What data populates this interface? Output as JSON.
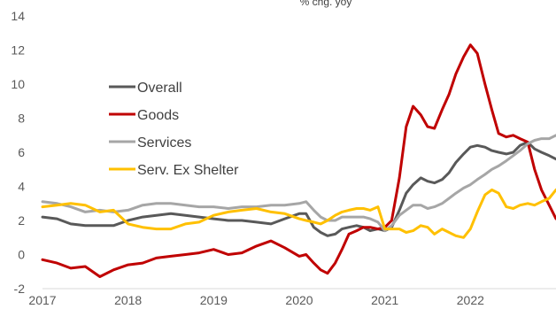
{
  "chart_data": {
    "type": "line",
    "title": "% chg. yoy",
    "ylim": [
      -2,
      14
    ],
    "yticks": [
      -2,
      0,
      2,
      4,
      6,
      8,
      10,
      12,
      14
    ],
    "xlim": [
      2017,
      2023
    ],
    "xticks": [
      "2017",
      "2018",
      "2019",
      "2020",
      "2021",
      "2022"
    ],
    "grid": false,
    "legend": "middle-left",
    "series": [
      {
        "name": "Overall",
        "color": "#595959",
        "x": [
          2017.0,
          2017.17,
          2017.33,
          2017.5,
          2017.67,
          2017.83,
          2018.0,
          2018.17,
          2018.33,
          2018.5,
          2018.67,
          2018.83,
          2019.0,
          2019.17,
          2019.33,
          2019.5,
          2019.67,
          2019.83,
          2020.0,
          2020.08,
          2020.17,
          2020.25,
          2020.33,
          2020.42,
          2020.5,
          2020.58,
          2020.67,
          2020.75,
          2020.83,
          2020.92,
          2021.0,
          2021.08,
          2021.17,
          2021.25,
          2021.33,
          2021.42,
          2021.5,
          2021.58,
          2021.67,
          2021.75,
          2021.83,
          2021.92,
          2022.0,
          2022.08,
          2022.17,
          2022.25,
          2022.33,
          2022.42,
          2022.5,
          2022.58,
          2022.67,
          2022.75,
          2022.83,
          2022.92,
          2023.0
        ],
        "values": [
          2.2,
          2.1,
          1.8,
          1.7,
          1.7,
          1.7,
          2.0,
          2.2,
          2.3,
          2.4,
          2.3,
          2.2,
          2.1,
          2.0,
          2.0,
          1.9,
          1.8,
          2.1,
          2.4,
          2.4,
          1.6,
          1.3,
          1.1,
          1.2,
          1.5,
          1.6,
          1.7,
          1.6,
          1.4,
          1.5,
          1.4,
          1.6,
          2.6,
          3.6,
          4.1,
          4.5,
          4.3,
          4.2,
          4.4,
          4.8,
          5.4,
          5.9,
          6.3,
          6.4,
          6.3,
          6.1,
          6.0,
          5.9,
          6.0,
          6.4,
          6.6,
          6.2,
          6.0,
          5.8,
          5.6
        ]
      },
      {
        "name": "Goods",
        "color": "#c00000",
        "x": [
          2017.0,
          2017.17,
          2017.33,
          2017.5,
          2017.67,
          2017.83,
          2018.0,
          2018.17,
          2018.33,
          2018.5,
          2018.67,
          2018.83,
          2019.0,
          2019.17,
          2019.33,
          2019.5,
          2019.67,
          2019.83,
          2020.0,
          2020.08,
          2020.17,
          2020.25,
          2020.33,
          2020.42,
          2020.5,
          2020.58,
          2020.67,
          2020.75,
          2020.83,
          2020.92,
          2021.0,
          2021.08,
          2021.17,
          2021.25,
          2021.33,
          2021.42,
          2021.5,
          2021.58,
          2021.67,
          2021.75,
          2021.83,
          2021.92,
          2022.0,
          2022.08,
          2022.17,
          2022.25,
          2022.33,
          2022.42,
          2022.5,
          2022.58,
          2022.67,
          2022.75,
          2022.83,
          2022.92,
          2023.0
        ],
        "values": [
          -0.3,
          -0.5,
          -0.8,
          -0.7,
          -1.3,
          -0.9,
          -0.6,
          -0.5,
          -0.2,
          -0.1,
          0.0,
          0.1,
          0.3,
          0.0,
          0.1,
          0.5,
          0.8,
          0.4,
          -0.1,
          0.0,
          -0.5,
          -0.9,
          -1.1,
          -0.5,
          0.3,
          1.2,
          1.4,
          1.6,
          1.6,
          1.5,
          1.6,
          2.0,
          4.5,
          7.5,
          8.7,
          8.2,
          7.5,
          7.4,
          8.5,
          9.4,
          10.6,
          11.6,
          12.3,
          11.8,
          10.0,
          8.5,
          7.1,
          6.9,
          7.0,
          6.8,
          6.6,
          5.0,
          3.8,
          2.9,
          2.1
        ]
      },
      {
        "name": "Services",
        "color": "#a6a6a6",
        "x": [
          2017.0,
          2017.17,
          2017.33,
          2017.5,
          2017.67,
          2017.83,
          2018.0,
          2018.17,
          2018.33,
          2018.5,
          2018.67,
          2018.83,
          2019.0,
          2019.17,
          2019.33,
          2019.5,
          2019.67,
          2019.83,
          2020.0,
          2020.08,
          2020.17,
          2020.25,
          2020.33,
          2020.42,
          2020.5,
          2020.58,
          2020.67,
          2020.75,
          2020.83,
          2020.92,
          2021.0,
          2021.08,
          2021.17,
          2021.25,
          2021.33,
          2021.42,
          2021.5,
          2021.58,
          2021.67,
          2021.75,
          2021.83,
          2021.92,
          2022.0,
          2022.08,
          2022.17,
          2022.25,
          2022.33,
          2022.42,
          2022.5,
          2022.58,
          2022.67,
          2022.75,
          2022.83,
          2022.92,
          2023.0
        ],
        "values": [
          3.1,
          3.0,
          2.8,
          2.5,
          2.6,
          2.5,
          2.6,
          2.9,
          3.0,
          3.0,
          2.9,
          2.8,
          2.8,
          2.7,
          2.8,
          2.8,
          2.9,
          2.9,
          3.0,
          3.1,
          2.6,
          2.2,
          2.0,
          2.0,
          2.2,
          2.2,
          2.2,
          2.2,
          2.1,
          1.9,
          1.4,
          1.7,
          2.3,
          2.6,
          2.9,
          2.9,
          2.7,
          2.8,
          3.0,
          3.3,
          3.6,
          3.9,
          4.1,
          4.4,
          4.7,
          5.0,
          5.2,
          5.5,
          5.8,
          6.1,
          6.5,
          6.7,
          6.8,
          6.8,
          7.0
        ]
      },
      {
        "name": "Serv. Ex Shelter",
        "color": "#ffc000",
        "x": [
          2017.0,
          2017.17,
          2017.33,
          2017.5,
          2017.67,
          2017.83,
          2018.0,
          2018.17,
          2018.33,
          2018.5,
          2018.67,
          2018.83,
          2019.0,
          2019.17,
          2019.33,
          2019.5,
          2019.67,
          2019.83,
          2020.0,
          2020.08,
          2020.17,
          2020.25,
          2020.33,
          2020.42,
          2020.5,
          2020.58,
          2020.67,
          2020.75,
          2020.83,
          2020.92,
          2021.0,
          2021.08,
          2021.17,
          2021.25,
          2021.33,
          2021.42,
          2021.5,
          2021.58,
          2021.67,
          2021.75,
          2021.83,
          2021.92,
          2022.0,
          2022.08,
          2022.17,
          2022.25,
          2022.33,
          2022.42,
          2022.5,
          2022.58,
          2022.67,
          2022.75,
          2022.83,
          2022.92,
          2023.0
        ],
        "values": [
          2.8,
          2.9,
          3.0,
          2.9,
          2.5,
          2.6,
          1.8,
          1.6,
          1.5,
          1.5,
          1.8,
          1.9,
          2.3,
          2.5,
          2.6,
          2.7,
          2.5,
          2.4,
          2.1,
          2.0,
          1.9,
          1.8,
          2.0,
          2.3,
          2.5,
          2.6,
          2.7,
          2.7,
          2.6,
          2.8,
          1.5,
          1.5,
          1.5,
          1.3,
          1.4,
          1.7,
          1.6,
          1.2,
          1.5,
          1.3,
          1.1,
          1.0,
          1.5,
          2.5,
          3.5,
          3.8,
          3.6,
          2.8,
          2.7,
          2.9,
          3.0,
          2.9,
          3.1,
          3.3,
          3.8
        ]
      }
    ]
  }
}
